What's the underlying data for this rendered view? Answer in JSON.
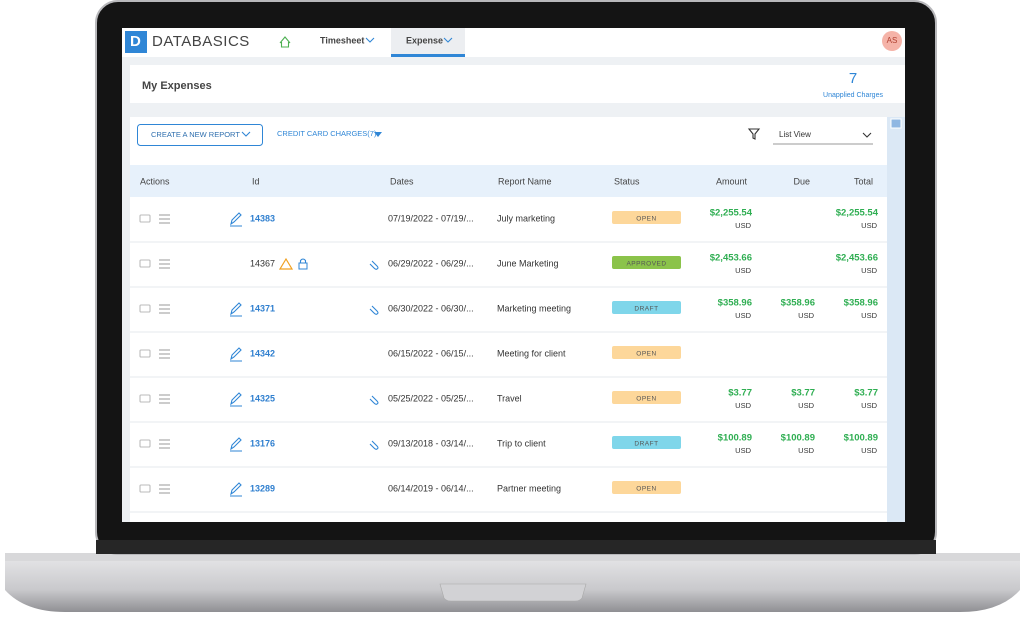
{
  "header": {
    "logo": "DATABASICS",
    "nav": [
      "Timesheet",
      "Expense"
    ],
    "avatar": "AS"
  },
  "page": {
    "title": "My Expenses",
    "unapplied_count": "7",
    "unapplied_label": "Unapplied Charges"
  },
  "toolbar": {
    "create_button": "CREATE A NEW REPORT",
    "credit_card": "CREDIT CARD CHARGES(7)",
    "view": "List View"
  },
  "table": {
    "columns": [
      "Actions",
      "Id",
      "Dates",
      "Report Name",
      "Status",
      "Amount",
      "Due",
      "Total"
    ],
    "rows": [
      {
        "id": "14383",
        "dates": "07/19/2022 - 07/19/...",
        "name": "July marketing",
        "status": "OPEN",
        "amount": {
          "value": "$2,255.54",
          "currency": "USD"
        },
        "total": {
          "value": "$2,255.54",
          "currency": "USD"
        }
      },
      {
        "id": "14367",
        "dates": "06/29/2022 - 06/29/...",
        "name": "June Marketing",
        "status": "APPROVED",
        "amount": {
          "value": "$2,453.66",
          "currency": "USD"
        },
        "total": {
          "value": "$2,453.66",
          "currency": "USD"
        }
      },
      {
        "id": "14371",
        "dates": "06/30/2022 - 06/30/...",
        "name": "Marketing meeting",
        "status": "DRAFT",
        "amount": {
          "value": "$358.96",
          "currency": "USD"
        },
        "due": {
          "value": "$358.96",
          "currency": "USD"
        },
        "total": {
          "value": "$358.96",
          "currency": "USD"
        }
      },
      {
        "id": "14342",
        "dates": "06/15/2022 - 06/15/...",
        "name": "Meeting for client",
        "status": "OPEN"
      },
      {
        "id": "14325",
        "dates": "05/25/2022 - 05/25/...",
        "name": "Travel",
        "status": "OPEN",
        "amount": {
          "value": "$3.77",
          "currency": "USD"
        },
        "due": {
          "value": "$3.77",
          "currency": "USD"
        },
        "total": {
          "value": "$3.77",
          "currency": "USD"
        }
      },
      {
        "id": "13176",
        "dates": "09/13/2018 - 03/14/...",
        "name": "Trip to client",
        "status": "DRAFT",
        "amount": {
          "value": "$100.89",
          "currency": "USD"
        },
        "due": {
          "value": "$100.89",
          "currency": "USD"
        },
        "total": {
          "value": "$100.89",
          "currency": "USD"
        }
      },
      {
        "id": "13289",
        "dates": "06/14/2019 - 06/14/...",
        "name": "Partner meeting",
        "status": "OPEN"
      }
    ]
  }
}
